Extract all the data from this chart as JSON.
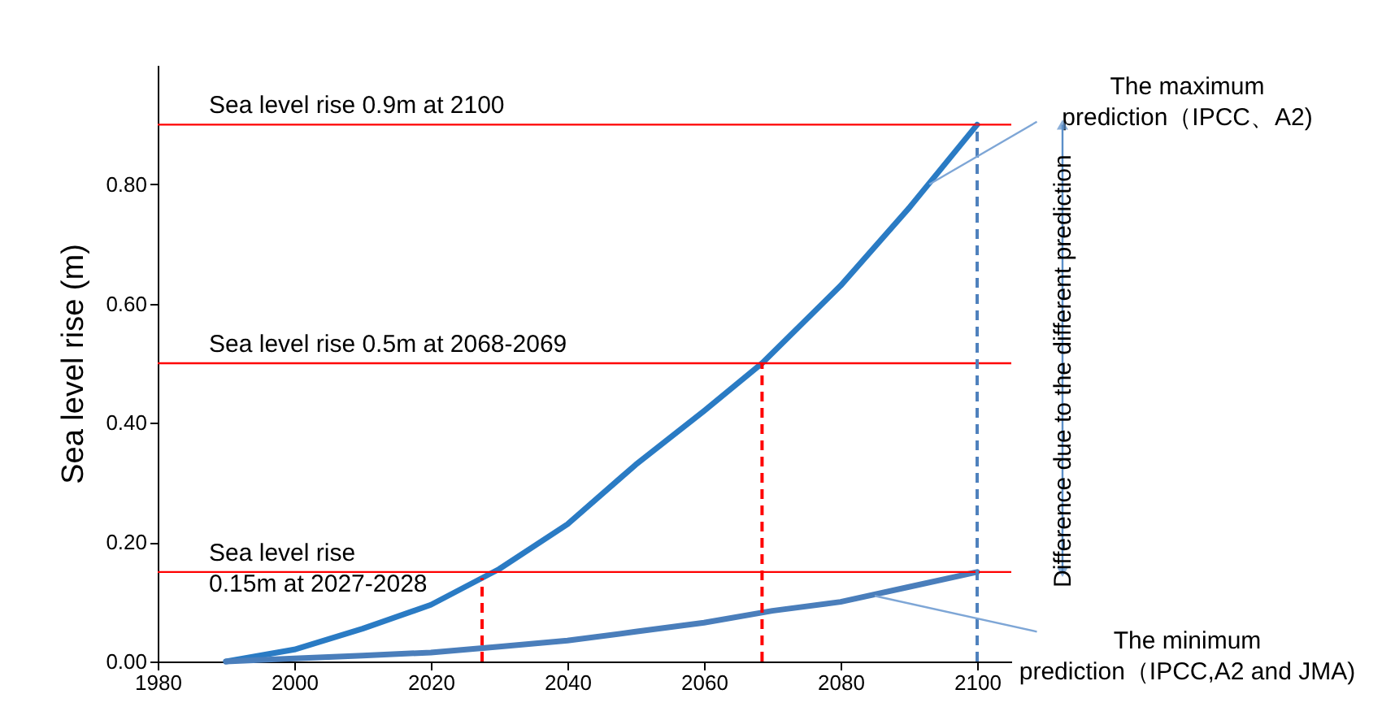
{
  "chart_data": {
    "type": "line",
    "ylabel": "Sea level rise (m)",
    "xlim": [
      1980,
      2105
    ],
    "xticks": [
      1980,
      2000,
      2020,
      2040,
      2060,
      2080,
      2100
    ],
    "ylim": [
      0,
      1.0
    ],
    "yticks": [
      {
        "value": 0,
        "label": "0.00"
      },
      {
        "value": 0.2,
        "label": "0.20"
      },
      {
        "value": 0.4,
        "label": "0.40"
      },
      {
        "value": 0.6,
        "label": "0.60"
      },
      {
        "value": 0.8,
        "label": "0.80"
      }
    ],
    "grid": false,
    "marker": "none",
    "line_style": "solid",
    "series": [
      {
        "color": "#2a7bc4",
        "x": [
          1990,
          2000,
          2010,
          2020,
          2030,
          2040,
          2050,
          2060,
          2068.5,
          2080,
          2090,
          2100
        ],
        "values": [
          0,
          0.02,
          0.055,
          0.095,
          0.155,
          0.23,
          0.33,
          0.42,
          0.5,
          0.63,
          0.76,
          0.9
        ]
      },
      {
        "color": "#4a7ebb",
        "x": [
          1990,
          2000,
          2010,
          2020,
          2030,
          2040,
          2050,
          2060,
          2070,
          2080,
          2090,
          2100
        ],
        "values": [
          0,
          0.005,
          0.01,
          0.015,
          0.025,
          0.035,
          0.05,
          0.065,
          0.085,
          0.1,
          0.125,
          0.15
        ]
      }
    ],
    "ref_lines": [
      {
        "axis": "y",
        "value": 0.9,
        "label": "Sea level rise 0.9m at 2100",
        "color": "#ff0000",
        "line_style": "solid"
      },
      {
        "axis": "y",
        "value": 0.5,
        "label": "Sea level rise 0.5m at 2068-2069",
        "color": "#ff0000",
        "line_style": "solid"
      },
      {
        "axis": "y",
        "value": 0.15,
        "label": "Sea level rise 0.15m at 2027-2028",
        "color": "#ff0000",
        "line_style": "solid"
      },
      {
        "axis": "x",
        "value": 2027.5,
        "color": "#ff0000",
        "line_style": "dashed"
      },
      {
        "axis": "x",
        "value": 2068.5,
        "color": "#ff0000",
        "line_style": "dashed"
      },
      {
        "axis": "x",
        "value": 2100,
        "color": "#4f81bd",
        "line_style": "dashed"
      }
    ],
    "annotations": [
      {
        "text": "The maximum prediction（IPCC、A2)",
        "x": 2093,
        "y": 0.8
      },
      {
        "text": "The minimum prediction（IPCC,A2 and JMA)",
        "x": 2085,
        "y": 0.11
      },
      "Difference due to the different prediction"
    ]
  }
}
